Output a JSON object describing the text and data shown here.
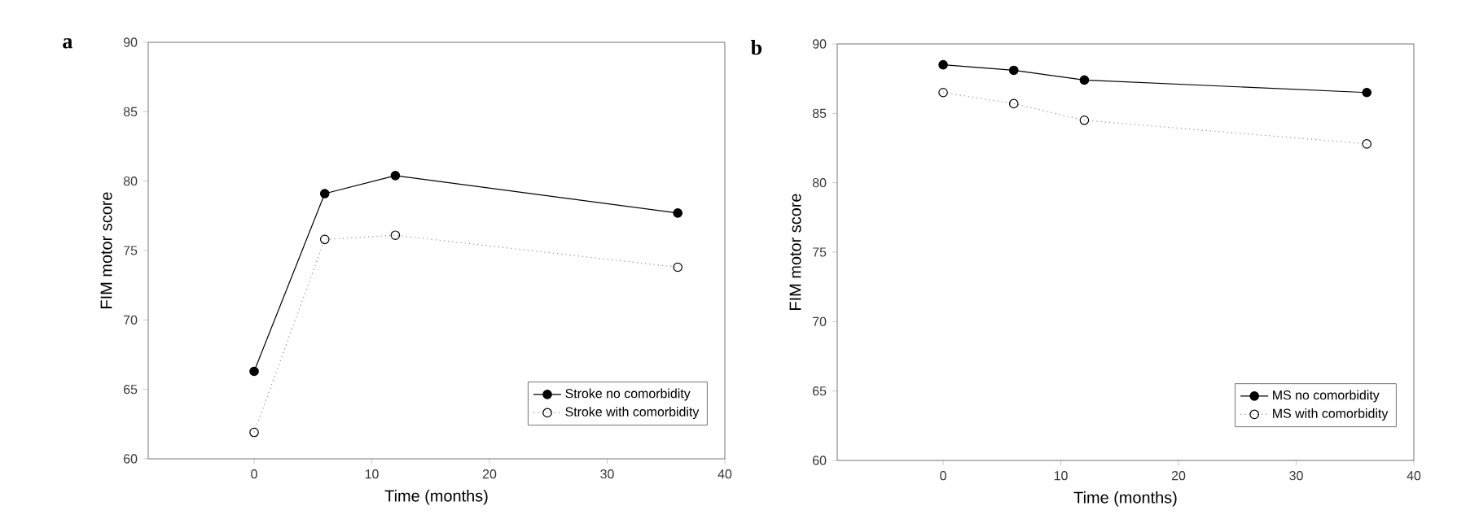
{
  "chart_data": [
    {
      "type": "line",
      "title": "a",
      "xlabel": "Time (months)",
      "ylabel": "FIM motor score",
      "x": [
        0,
        6,
        12,
        36
      ],
      "series": [
        {
          "name": "Stroke no comorbidity",
          "color": "#000000",
          "line_style": "solid",
          "values": [
            66.3,
            79.1,
            80.4,
            77.7
          ]
        },
        {
          "name": "Stroke with comorbidity",
          "color": "#909090",
          "line_style": "dotted",
          "values": [
            61.9,
            75.8,
            76.1,
            73.8
          ]
        }
      ],
      "marker": "circle",
      "xlim": [
        -9,
        40
      ],
      "ylim": [
        60,
        90
      ],
      "xticks": [
        0,
        10,
        20,
        30,
        40
      ],
      "yticks": [
        60,
        65,
        70,
        75,
        80,
        85,
        90
      ],
      "grid": false,
      "legend": "bottom right"
    },
    {
      "type": "line",
      "title": "b",
      "xlabel": "Time (months)",
      "ylabel": "FIM motor score",
      "x": [
        0,
        6,
        12,
        36
      ],
      "series": [
        {
          "name": "MS no comorbidity",
          "color": "#000000",
          "line_style": "solid",
          "values": [
            88.5,
            88.1,
            87.4,
            86.5
          ]
        },
        {
          "name": "MS with comorbidity",
          "color": "#909090",
          "line_style": "dotted",
          "values": [
            86.5,
            85.7,
            84.5,
            82.8
          ]
        }
      ],
      "marker": "circle",
      "xlim": [
        -9,
        40
      ],
      "ylim": [
        60,
        90
      ],
      "xticks": [
        0,
        10,
        20,
        30,
        40
      ],
      "yticks": [
        60,
        65,
        70,
        75,
        80,
        85,
        90
      ],
      "grid": false,
      "legend": "bottom right"
    }
  ]
}
